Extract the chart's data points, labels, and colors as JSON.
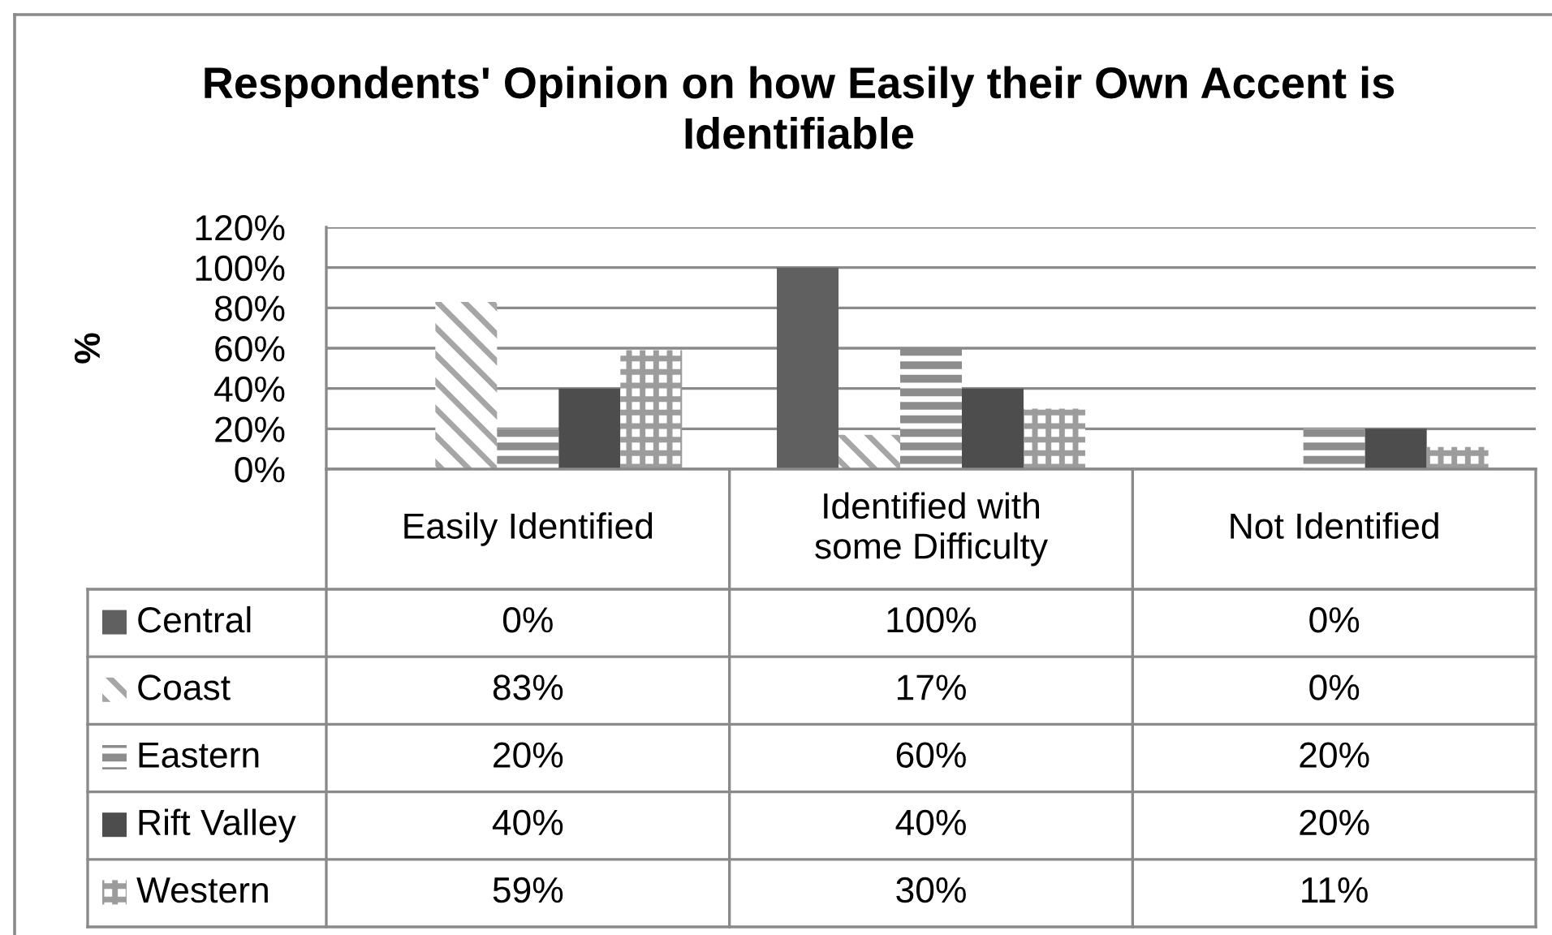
{
  "chart_data": {
    "type": "bar",
    "title": "Respondents' Opinion on how Easily their Own Accent is\nIdentifiable",
    "ylabel": "%",
    "categories": [
      "Easily Identified",
      "Identified with\nsome Difficulty",
      "Not Identified"
    ],
    "series": [
      {
        "name": "Central",
        "color": "#606060",
        "values": [
          0,
          100,
          0
        ],
        "value_labels": [
          "0%",
          "100%",
          "0%"
        ]
      },
      {
        "name": "Coast",
        "color": "#a6a6a6",
        "values": [
          83,
          17,
          0
        ],
        "value_labels": [
          "83%",
          "17%",
          "0%"
        ]
      },
      {
        "name": "Eastern",
        "color": "#8c8c8c",
        "values": [
          20,
          60,
          20
        ],
        "value_labels": [
          "20%",
          "60%",
          "20%"
        ]
      },
      {
        "name": "Rift Valley",
        "color": "#4d4d4d",
        "values": [
          40,
          40,
          20
        ],
        "value_labels": [
          "40%",
          "40%",
          "20%"
        ]
      },
      {
        "name": "Western",
        "color": "#9c9c9c",
        "values": [
          59,
          30,
          11
        ],
        "value_labels": [
          "59%",
          "30%",
          "11%"
        ]
      }
    ],
    "ylim": [
      0,
      120
    ],
    "yticks": [
      {
        "value": 0,
        "label": "0%"
      },
      {
        "value": 20,
        "label": "20%"
      },
      {
        "value": 40,
        "label": "40%"
      },
      {
        "value": 60,
        "label": "60%"
      },
      {
        "value": 80,
        "label": "80%"
      },
      {
        "value": 100,
        "label": "100%"
      },
      {
        "value": 120,
        "label": "120%"
      }
    ],
    "grid": "y",
    "legend": "bottom"
  }
}
